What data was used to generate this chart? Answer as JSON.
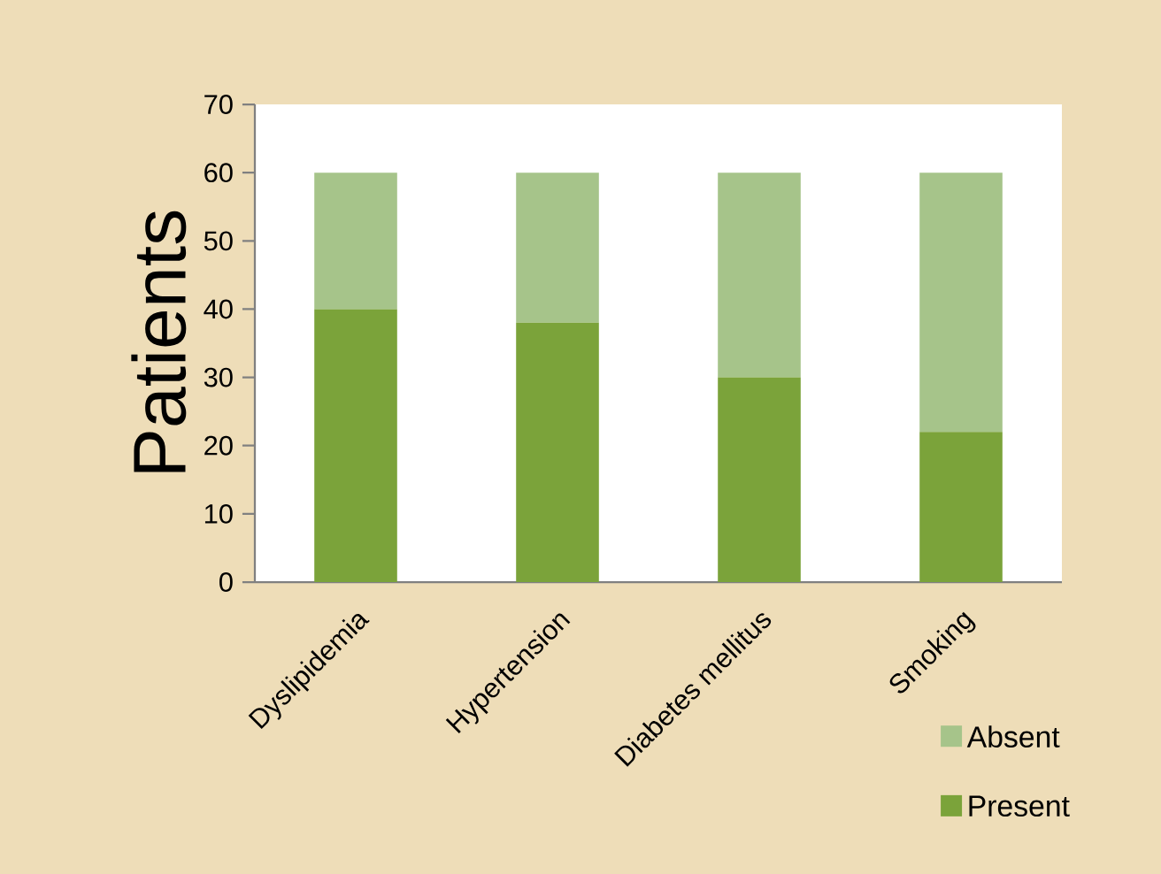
{
  "chart_data": {
    "type": "bar",
    "stacked": true,
    "ylabel": "Patients",
    "categories": [
      "Dyslipidemia",
      "Hypertension",
      "Diabetes mellitus",
      "Smoking"
    ],
    "series": [
      {
        "name": "Present",
        "color": "#7ba33a",
        "values": [
          40,
          38,
          30,
          22
        ]
      },
      {
        "name": "Absent",
        "color": "#a6c48a",
        "values": [
          20,
          22,
          30,
          38
        ]
      }
    ],
    "ylim": [
      0,
      70
    ],
    "yticks": [
      0,
      10,
      20,
      30,
      40,
      50,
      60,
      70
    ],
    "grid": false,
    "legend": "bottom right"
  }
}
